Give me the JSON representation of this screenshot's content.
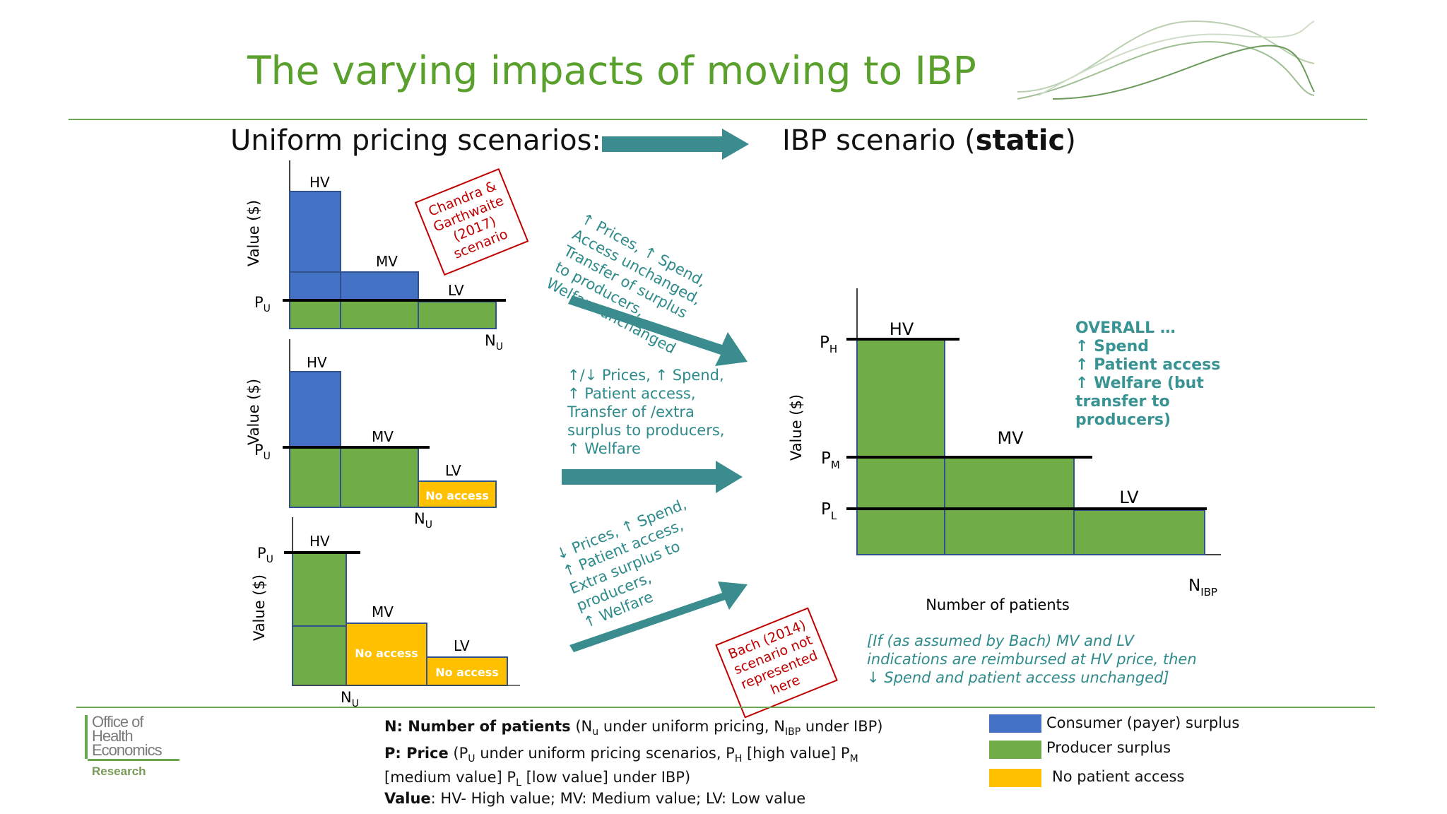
{
  "title": "The varying impacts of moving to IBP",
  "headings": {
    "uniform": "Uniform pricing scenarios:",
    "ibp_prefix": "IBP scenario (",
    "ibp_bold": "static",
    "ibp_suffix": ")"
  },
  "colors": {
    "title_green": "#5aa02c",
    "consumer_surplus": "#4472c4",
    "producer_surplus": "#70ad47",
    "no_access": "#ffc000",
    "teal_arrow": "#3a8c8f",
    "red_box": "#c00000",
    "note_teal": "#2f8b8b"
  },
  "small_charts": {
    "y_label": "Value ($)",
    "hv": "HV",
    "mv": "MV",
    "lv": "LV",
    "pu": "P",
    "pu_sub": "U",
    "nu": "N",
    "nu_sub": "U",
    "no_access": "No access"
  },
  "red_boxes": {
    "chandra": [
      "Chandra &",
      "Garthwaite",
      "(2017)",
      "scenario"
    ],
    "bach": [
      "Bach (2014)",
      "scenario not",
      "represented",
      "here"
    ]
  },
  "arrow_notes": {
    "top": [
      "↑ Prices, ↑ Spend,",
      "Access unchanged,",
      "Transfer of surplus",
      "to producers,",
      "Welfare unchanged"
    ],
    "middle": [
      "↑/↓ Prices, ↑ Spend,",
      "↑ Patient access,",
      "Transfer of /extra",
      "surplus to producers,",
      "↑ Welfare"
    ],
    "bottom": [
      "↓ Prices, ↑ Spend,",
      "↑ Patient access,",
      "Extra surplus to",
      "producers,",
      "↑ Welfare"
    ]
  },
  "ibp_chart": {
    "y_label": "Value ($)",
    "x_label": "Number of patients",
    "hv": "HV",
    "mv": "MV",
    "lv": "LV",
    "ph": "P",
    "ph_sub": "H",
    "pm": "P",
    "pm_sub": "M",
    "pl": "P",
    "pl_sub": "L",
    "n_ibp": "N",
    "n_ibp_sub": "IBP"
  },
  "overall": [
    "OVERALL …",
    "↑ Spend",
    "↑ Patient access",
    "↑ Welfare (but",
    "transfer to",
    "producers)"
  ],
  "bach_note": [
    "[If (as assumed by Bach) MV and LV",
    "indications are reimbursed at HV price, then",
    "↓ Spend and patient access unchanged]"
  ],
  "footer": {
    "n_bold": "N: Number of patients",
    "n_rest_1": " (N",
    "n_sub_u": "u",
    "n_rest_2": " under uniform pricing, N",
    "n_sub_ibp": "IBP",
    "n_rest_3": " under IBP)",
    "p_bold": "P: Price",
    "p_rest_1": " (P",
    "p_sub_u": "U",
    "p_rest_2": " under uniform pricing scenarios, P",
    "p_sub_h": "H",
    "p_rest_3": " [high value] P",
    "p_sub_m": "M",
    "p_line2_1": "[medium value] P",
    "p_sub_l": "L",
    "p_line2_2": " [low value] under IBP)",
    "v_bold": "Value",
    "v_rest": ": HV- High value; MV: Medium value; LV: Low value"
  },
  "legend": [
    {
      "label": "Consumer (payer) surplus",
      "color": "#4472c4"
    },
    {
      "label": "Producer surplus",
      "color": "#70ad47"
    },
    {
      "label": "No patient access",
      "color": "#ffc000"
    }
  ],
  "logo": {
    "line1": "Office of",
    "line2": "Health",
    "line3": "Economics",
    "line4": "Research"
  }
}
